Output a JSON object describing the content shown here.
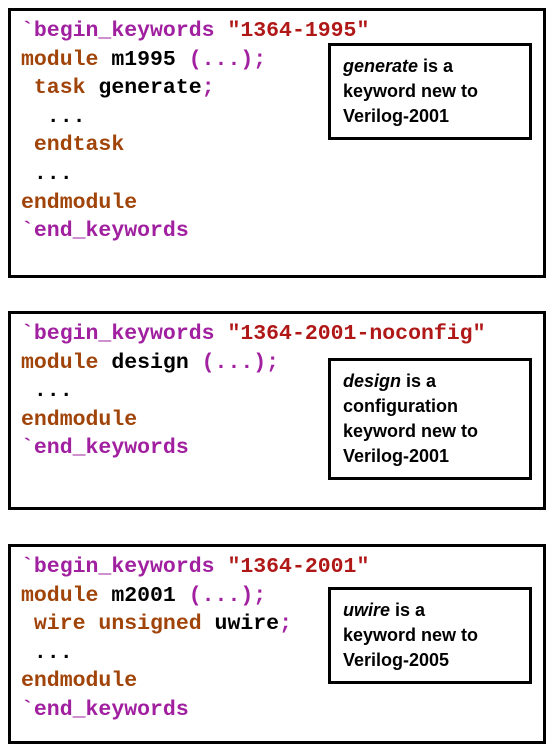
{
  "colors": {
    "directive": "#a020a0",
    "keyword": "#a0440a",
    "string": "#b01818",
    "punct": "#a020a0",
    "plain": "#000000"
  },
  "panels": [
    {
      "lines": [
        [
          {
            "t": "`begin_keywords ",
            "c": "directive"
          },
          {
            "t": "\"1364-1995\"",
            "c": "string"
          }
        ],
        [
          {
            "t": "module ",
            "c": "keyword"
          },
          {
            "t": "m1995 ",
            "c": "plain"
          },
          {
            "t": "(...);",
            "c": "punct"
          }
        ],
        [
          {
            "t": " task ",
            "c": "keyword"
          },
          {
            "t": "generate",
            "c": "plain"
          },
          {
            "t": ";",
            "c": "punct"
          }
        ],
        [
          {
            "t": "  ...",
            "c": "plain"
          }
        ],
        [
          {
            "t": " endtask",
            "c": "keyword"
          }
        ],
        [
          {
            "t": " ...",
            "c": "plain"
          }
        ],
        [
          {
            "t": "endmodule",
            "c": "keyword"
          }
        ],
        [
          {
            "t": "`end_keywords",
            "c": "directive"
          }
        ]
      ],
      "callout": {
        "lead": "generate",
        "rest": " is a",
        "line2": "keyword new to",
        "line3": "Verilog-2001"
      }
    },
    {
      "lines": [
        [
          {
            "t": "`begin_keywords ",
            "c": "directive"
          },
          {
            "t": "\"1364-2001-noconfig\"",
            "c": "string"
          }
        ],
        [
          {
            "t": "module ",
            "c": "keyword"
          },
          {
            "t": "design ",
            "c": "plain"
          },
          {
            "t": "(...);",
            "c": "punct"
          }
        ],
        [
          {
            "t": " ...",
            "c": "plain"
          }
        ],
        [
          {
            "t": "endmodule",
            "c": "keyword"
          }
        ],
        [
          {
            "t": "`end_keywords",
            "c": "directive"
          }
        ]
      ],
      "callout": {
        "lead": "design",
        "rest": " is a",
        "line2": "configuration",
        "line3": "keyword new to",
        "line4": "Verilog-2001"
      }
    },
    {
      "lines": [
        [
          {
            "t": "`begin_keywords ",
            "c": "directive"
          },
          {
            "t": "\"1364-2001\"",
            "c": "string"
          }
        ],
        [
          {
            "t": "module ",
            "c": "keyword"
          },
          {
            "t": "m2001 ",
            "c": "plain"
          },
          {
            "t": "(...);",
            "c": "punct"
          }
        ],
        [
          {
            "t": " wire unsigned ",
            "c": "keyword"
          },
          {
            "t": "uwire",
            "c": "plain"
          },
          {
            "t": ";",
            "c": "punct"
          }
        ],
        [
          {
            "t": " ...",
            "c": "plain"
          }
        ],
        [
          {
            "t": "endmodule",
            "c": "keyword"
          }
        ],
        [
          {
            "t": "`end_keywords",
            "c": "directive"
          }
        ]
      ],
      "callout": {
        "lead": "uwire",
        "rest": " is a",
        "line2": "keyword new to",
        "line3": "Verilog-2005"
      }
    }
  ]
}
